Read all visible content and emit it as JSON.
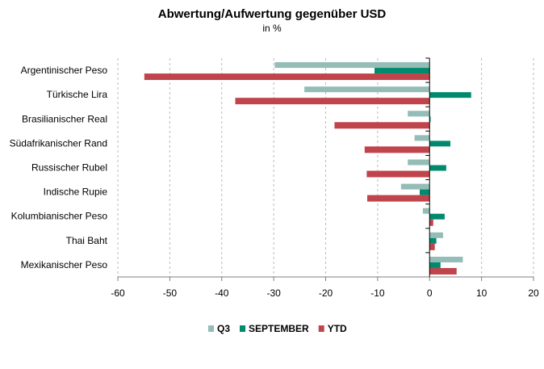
{
  "chart_data": {
    "type": "bar",
    "orientation": "horizontal",
    "title": "Abwertung/Aufwertung gegenüber USD",
    "subtitle": "in %",
    "xlabel": "",
    "ylabel": "",
    "xlim": [
      -60,
      20
    ],
    "xticks": [
      -60,
      -50,
      -40,
      -30,
      -20,
      -10,
      0,
      10,
      20
    ],
    "grid": true,
    "legend_position": "bottom",
    "categories": [
      "Argentinischer Peso",
      "Türkische Lira",
      "Brasilianischer Real",
      "Südafrikanischer Rand",
      "Russischer Rubel",
      "Indische Rupie",
      "Kolumbianischer Peso",
      "Thai Baht",
      "Mexikanischer Peso"
    ],
    "series": [
      {
        "name": "Q3",
        "color": "#93bdb6",
        "values": [
          -29.8,
          -24.1,
          -4.2,
          -2.9,
          -4.2,
          -5.5,
          -1.3,
          2.6,
          6.4
        ]
      },
      {
        "name": "SEPTEMBER",
        "color": "#00896c",
        "values": [
          -10.6,
          8.0,
          0.2,
          4.0,
          3.2,
          -1.9,
          2.9,
          1.3,
          2.1
        ]
      },
      {
        "name": "YTD",
        "color": "#c0444b",
        "values": [
          -54.9,
          -37.4,
          -18.3,
          -12.5,
          -12.1,
          -12.0,
          0.7,
          1.0,
          5.2
        ]
      }
    ]
  }
}
